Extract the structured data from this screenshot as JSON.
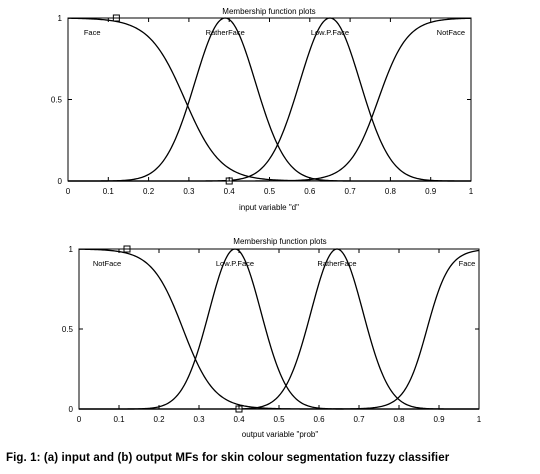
{
  "chart_data": [
    {
      "type": "line",
      "title": "Membership function plots",
      "xlabel": "input variable \"d\"",
      "ylabel": "",
      "xlim": [
        0,
        1
      ],
      "ylim": [
        0,
        1
      ],
      "x_ticks": [
        "0",
        "0.1",
        "0.2",
        "0.3",
        "0.4",
        "0.5",
        "0.6",
        "0.7",
        "0.8",
        "0.9",
        "1"
      ],
      "y_ticks": [
        "0",
        "0.5",
        "1"
      ],
      "grid": false,
      "series": [
        {
          "name": "Face",
          "shape": "z",
          "center": 0.29,
          "width": 0.08,
          "label_x": 0.06,
          "x": [
            0,
            0.1,
            0.2,
            0.25,
            0.3,
            0.35,
            0.4,
            0.5
          ],
          "y": [
            1,
            0.99,
            0.78,
            0.58,
            0.35,
            0.17,
            0.03,
            0
          ]
        },
        {
          "name": "RatherFace",
          "shape": "gauss",
          "center": 0.39,
          "width": 0.075,
          "label_x": 0.39,
          "x": [
            0.2,
            0.3,
            0.35,
            0.39,
            0.45,
            0.5,
            0.6
          ],
          "y": [
            0.04,
            0.47,
            0.84,
            1,
            0.73,
            0.35,
            0.02
          ]
        },
        {
          "name": "Low.P.Face",
          "shape": "gauss",
          "center": 0.65,
          "width": 0.075,
          "label_x": 0.65,
          "x": [
            0.45,
            0.55,
            0.6,
            0.65,
            0.7,
            0.75,
            0.85
          ],
          "y": [
            0.03,
            0.4,
            0.8,
            1,
            0.8,
            0.4,
            0.03
          ]
        },
        {
          "name": "NotFace",
          "shape": "s",
          "center": 0.77,
          "width": 0.065,
          "label_x": 0.95,
          "x": [
            0.55,
            0.65,
            0.7,
            0.77,
            0.85,
            0.9,
            1
          ],
          "y": [
            0,
            0.08,
            0.22,
            0.5,
            0.83,
            0.95,
            1
          ]
        }
      ],
      "markers": [
        {
          "x": 0.12,
          "y": 1
        },
        {
          "x": 0.4,
          "y": 0
        }
      ]
    },
    {
      "type": "line",
      "title": "Membership function plots",
      "xlabel": "output variable \"prob\"",
      "ylabel": "",
      "xlim": [
        0,
        1
      ],
      "ylim": [
        0,
        1
      ],
      "x_ticks": [
        "0",
        "0.1",
        "0.2",
        "0.3",
        "0.4",
        "0.5",
        "0.6",
        "0.7",
        "0.8",
        "0.9",
        "1"
      ],
      "y_ticks": [
        "0",
        "0.5",
        "1"
      ],
      "grid": false,
      "series": [
        {
          "name": "NotFace",
          "shape": "z",
          "center": 0.26,
          "width": 0.07,
          "label_x": 0.07,
          "x": [
            0,
            0.1,
            0.2,
            0.26,
            0.3,
            0.35,
            0.4
          ],
          "y": [
            1,
            0.99,
            0.76,
            0.5,
            0.33,
            0.14,
            0.03
          ]
        },
        {
          "name": "Low.P.Face",
          "shape": "gauss",
          "center": 0.39,
          "width": 0.065,
          "label_x": 0.39,
          "x": [
            0.25,
            0.3,
            0.35,
            0.39,
            0.45,
            0.5,
            0.55
          ],
          "y": [
            0.1,
            0.39,
            0.83,
            1,
            0.65,
            0.24,
            0.05
          ]
        },
        {
          "name": "RatherFace",
          "shape": "gauss",
          "center": 0.645,
          "width": 0.065,
          "label_x": 0.645,
          "x": [
            0.5,
            0.55,
            0.6,
            0.645,
            0.7,
            0.75,
            0.8
          ],
          "y": [
            0.08,
            0.35,
            0.8,
            1,
            0.7,
            0.27,
            0.06
          ]
        },
        {
          "name": "Face",
          "shape": "s",
          "center": 0.87,
          "width": 0.05,
          "label_x": 0.97,
          "x": [
            0.7,
            0.8,
            0.85,
            0.87,
            0.9,
            0.95,
            1
          ],
          "y": [
            0.01,
            0.13,
            0.38,
            0.5,
            0.68,
            0.91,
            1
          ]
        }
      ],
      "markers": [
        {
          "x": 0.12,
          "y": 1
        },
        {
          "x": 0.4,
          "y": 0
        }
      ]
    }
  ],
  "caption": "Fig. 1: (a) input and (b) output MFs for skin colour segmentation fuzzy classifier"
}
